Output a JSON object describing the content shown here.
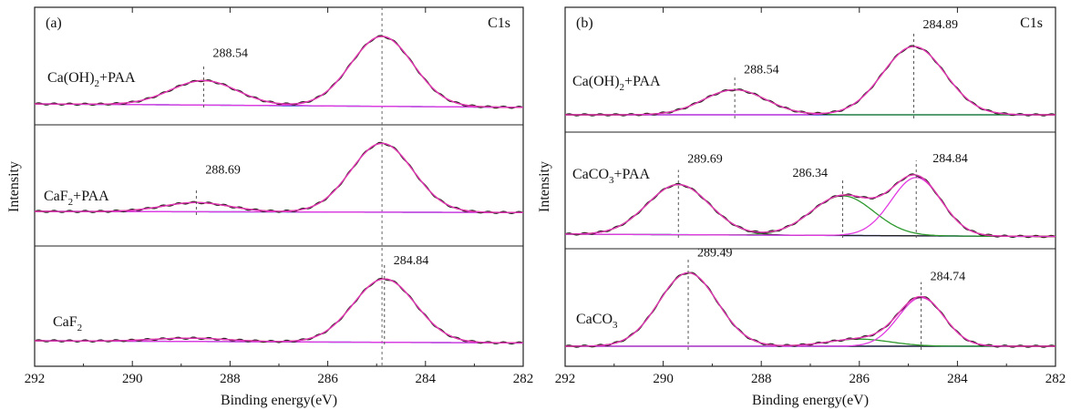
{
  "chart_data": [
    {
      "type": "line",
      "panel_label": "(a)",
      "corner_label": "C1s",
      "ylabel": "Intensity",
      "xlabel": "Binding energy(eV)",
      "xlim": [
        292,
        282
      ],
      "xticks": [
        "292",
        "290",
        "288",
        "286",
        "284",
        "282"
      ],
      "reference_lines": [
        284.89
      ],
      "colors": {
        "envelope": "#cc2222",
        "fit": "#e23be2",
        "raw": "#222222",
        "background": "#3f4bd6"
      },
      "spectra": [
        {
          "name": "Ca(OH)2+PAA",
          "label_main": "Ca(OH)",
          "label_sub": "2",
          "label_tail": "+PAA",
          "background": [
            [
              292,
              0.0
            ],
            [
              282,
              -0.03
            ]
          ],
          "components": [
            {
              "center": 288.54,
              "height": 0.21,
              "fwhm": 1.6
            },
            {
              "center": 284.89,
              "height": 0.6,
              "fwhm": 1.5
            }
          ],
          "peak_annotations": [
            {
              "x": 288.54,
              "label": "288.54"
            }
          ]
        },
        {
          "name": "CaF2+PAA",
          "label_main": "CaF",
          "label_sub": "2",
          "label_tail": "+PAA",
          "background": [
            [
              292,
              0.0
            ],
            [
              282,
              -0.01
            ]
          ],
          "components": [
            {
              "center": 288.69,
              "height": 0.08,
              "fwhm": 1.6
            },
            {
              "center": 284.89,
              "height": 0.6,
              "fwhm": 1.5
            }
          ],
          "peak_annotations": [
            {
              "x": 288.69,
              "label": "288.69"
            }
          ]
        },
        {
          "name": "CaF2",
          "label_main": "CaF",
          "label_sub": "2",
          "label_tail": "",
          "background": [
            [
              292,
              0.0
            ],
            [
              282,
              -0.02
            ]
          ],
          "components": [
            {
              "center": 288.8,
              "height": 0.03,
              "fwhm": 1.8
            },
            {
              "center": 284.84,
              "height": 0.58,
              "fwhm": 1.5
            }
          ],
          "peak_annotations": [
            {
              "x": 284.84,
              "label": "284.84"
            }
          ]
        }
      ]
    },
    {
      "type": "line",
      "panel_label": "(b)",
      "corner_label": "C1s",
      "ylabel": "Intensity",
      "xlabel": "Binding energy(eV)",
      "xlim": [
        292,
        282
      ],
      "xticks": [
        "292",
        "290",
        "288",
        "286",
        "284",
        "282"
      ],
      "reference_lines": [],
      "colors": {
        "envelope": "#cc2222",
        "fit": "#e23be2",
        "raw": "#222222",
        "background": "#3f4bd6",
        "component2": "#2e9a2e"
      },
      "spectra": [
        {
          "name": "Ca(OH)2+PAA",
          "label_main": "Ca(OH)",
          "label_sub": "2",
          "label_tail": "+PAA",
          "background": [
            [
              292,
              0.0
            ],
            [
              282,
              0.0
            ]
          ],
          "components": [
            {
              "center": 288.54,
              "height": 0.22,
              "fwhm": 1.5,
              "color": "component2"
            },
            {
              "center": 284.89,
              "height": 0.6,
              "fwhm": 1.5
            }
          ],
          "peak_annotations": [
            {
              "x": 288.54,
              "label": "288.54"
            },
            {
              "x": 284.89,
              "label": "284.89"
            }
          ]
        },
        {
          "name": "CaCO3+PAA",
          "label_main": "CaCO",
          "label_sub": "3",
          "label_tail": "+PAA",
          "background": [
            [
              292,
              0.0
            ],
            [
              282,
              -0.02
            ]
          ],
          "components": [
            {
              "center": 289.69,
              "height": 0.43,
              "fwhm": 1.5,
              "color": "raw"
            },
            {
              "center": 286.34,
              "height": 0.34,
              "fwhm": 1.5,
              "color": "component2"
            },
            {
              "center": 284.84,
              "height": 0.5,
              "fwhm": 1.2
            }
          ],
          "peak_annotations": [
            {
              "x": 289.69,
              "label": "289.69"
            },
            {
              "x": 286.34,
              "label": "286.34"
            },
            {
              "x": 284.84,
              "label": "284.84"
            }
          ]
        },
        {
          "name": "CaCO3",
          "label_main": "CaCO",
          "label_sub": "3",
          "label_tail": "",
          "background": [
            [
              292,
              0.0
            ],
            [
              282,
              0.0
            ]
          ],
          "components": [
            {
              "center": 289.49,
              "height": 0.62,
              "fwhm": 1.4,
              "color": "raw"
            },
            {
              "center": 286.0,
              "height": 0.06,
              "fwhm": 1.5,
              "color": "component2"
            },
            {
              "center": 284.74,
              "height": 0.41,
              "fwhm": 1.1
            }
          ],
          "peak_annotations": [
            {
              "x": 289.49,
              "label": "289.49"
            },
            {
              "x": 284.74,
              "label": "284.74"
            }
          ]
        }
      ]
    }
  ]
}
